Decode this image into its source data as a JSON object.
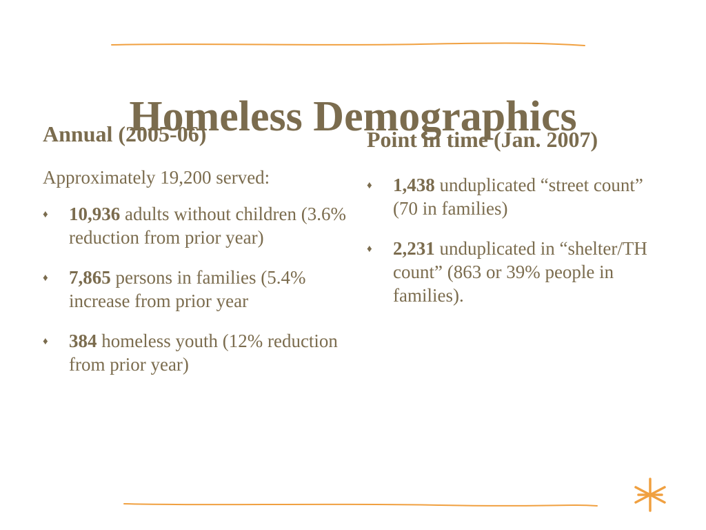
{
  "slide": {
    "title": "Homeless Demographics",
    "accent_color": "#f0a040",
    "text_color": "#7b6c4e"
  },
  "left": {
    "heading": "Annual (2005-06)",
    "intro": "Approximately 19,200 served:",
    "bullets": [
      {
        "number": "10,936",
        "text": " adults without children (3.6% reduction from prior year)"
      },
      {
        "number": "7,865",
        "text": " persons in families (5.4% increase from prior year"
      },
      {
        "number": "384",
        "text": " homeless youth (12% reduction from prior year)"
      }
    ]
  },
  "right": {
    "heading": "Point in time (Jan. 2007)",
    "bullets": [
      {
        "number": "1,438",
        "text": " unduplicated “street count” (70 in families)"
      },
      {
        "number": "2,231",
        "text": " unduplicated in “shelter/TH count” (863 or 39% people in families)."
      }
    ]
  },
  "icons": {
    "bullet": "diamond-bullet-icon",
    "decoration": "asterisk-icon"
  }
}
